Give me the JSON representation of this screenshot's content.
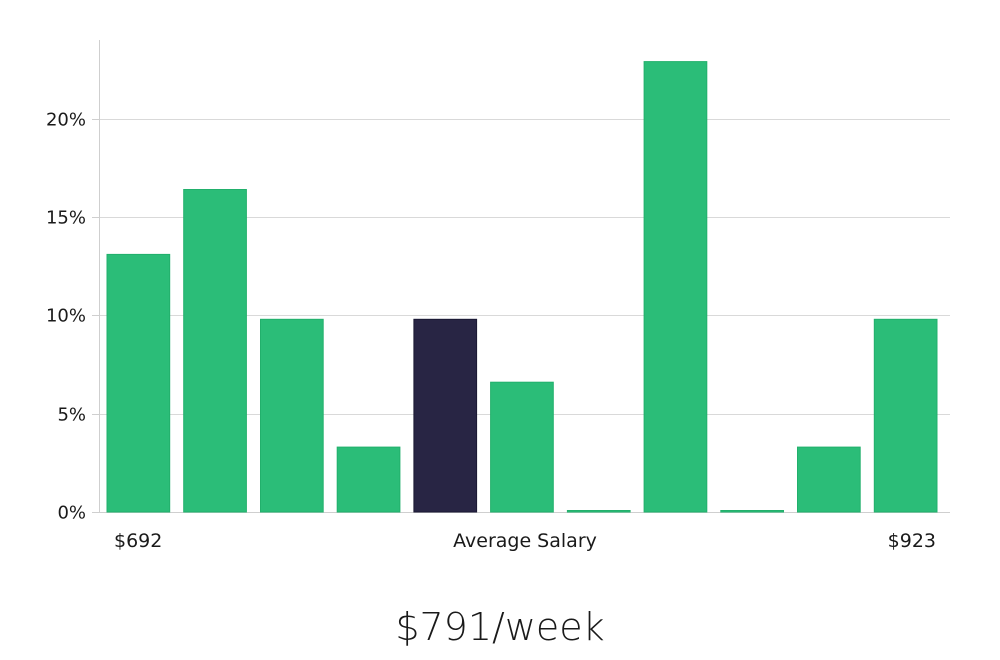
{
  "chart_data": {
    "type": "bar",
    "values": [
      13.1,
      16.4,
      9.8,
      3.3,
      9.8,
      6.6,
      0,
      22.9,
      0,
      3.3,
      9.8
    ],
    "highlight_index": 4,
    "ylim": [
      0,
      24
    ],
    "yticks": [
      0,
      5,
      10,
      15,
      20
    ],
    "ytick_labels": [
      "0%",
      "5%",
      "10%",
      "15%",
      "20%"
    ],
    "x_min_label": "$692",
    "x_center_label": "Average Salary",
    "x_max_label": "$923",
    "grid": true,
    "colors": {
      "bar": "#2bbd78",
      "highlight": "#282544",
      "grid": "#d9d9d9",
      "axis": "#cfcfcf"
    }
  },
  "average": {
    "value_text": "$791/week"
  }
}
